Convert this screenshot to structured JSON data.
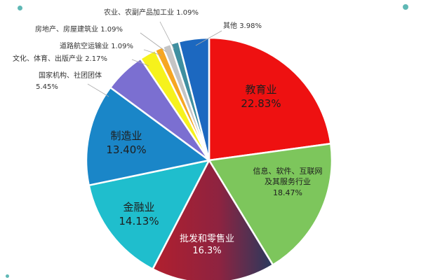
{
  "chart_data": {
    "type": "pie",
    "title": "",
    "legend": "none",
    "slices": [
      {
        "label": "教育业",
        "value": 22.83,
        "value_text": "22.83%",
        "color": "#ee1111"
      },
      {
        "label": "信息、软件、互联网及其服务行业",
        "label_lines": [
          "信息、软件、互联网",
          "及其服务行业"
        ],
        "value": 18.47,
        "value_text": "18.47%",
        "color": "#7dc65c"
      },
      {
        "label": "批发和零售业",
        "value": 16.3,
        "value_text": "16.3%",
        "color": "#a8213a"
      },
      {
        "label": "金融业",
        "value": 14.13,
        "value_text": "14.13%",
        "color": "#1fbecd"
      },
      {
        "label": "制造业",
        "value": 13.4,
        "value_text": "13.40%",
        "color": "#1a86c8"
      },
      {
        "label": "国家机构、社团团体",
        "value": 5.45,
        "value_text": "5.45%",
        "color": "#7b6fd1"
      },
      {
        "label": "文化、体育、出版产业",
        "value": 2.17,
        "value_text": "2.17%",
        "color": "#f6f21c"
      },
      {
        "label": "道路航空运输业",
        "value": 1.09,
        "value_text": "1.09%",
        "color": "#f6a623"
      },
      {
        "label": "房地产、房屋建筑业",
        "value": 1.09,
        "value_text": "1.09%",
        "color": "#c4c4c4"
      },
      {
        "label": "农业、农副产品加工业",
        "value": 1.09,
        "value_text": "1.09%",
        "color": "#3f8fa0"
      },
      {
        "label": "其他",
        "value": 3.98,
        "value_text": "3.98%",
        "color": "#1c68c0"
      }
    ]
  },
  "colors": {
    "background": "#ffffff",
    "leader_line": "#a8a8a8",
    "outside_label": "#333333",
    "decor_dot": "#5fb8b5"
  }
}
